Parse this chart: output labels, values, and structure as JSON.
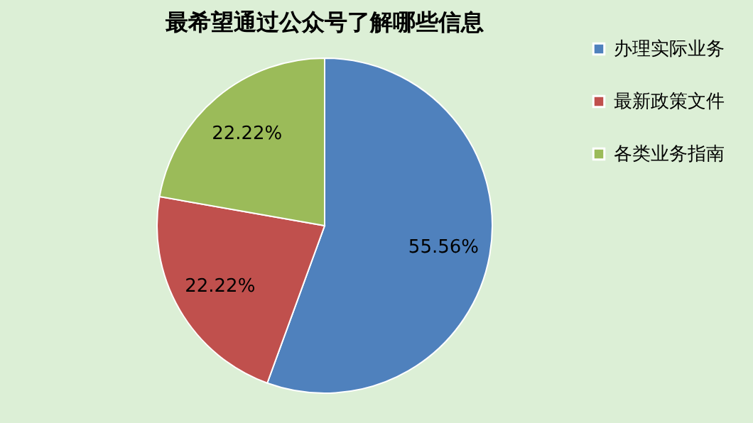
{
  "chart_data": {
    "type": "pie",
    "title": "最希望通过公众号了解哪些信息",
    "categories": [
      "办理实际业务",
      "最新政策文件",
      "各类业务指南"
    ],
    "values": [
      55.56,
      22.22,
      22.22
    ],
    "value_labels": [
      "55.56%",
      "22.22%",
      "22.22%"
    ],
    "colors": [
      "#4f81bd",
      "#c0504d",
      "#9bbb59"
    ],
    "legend": "right"
  }
}
